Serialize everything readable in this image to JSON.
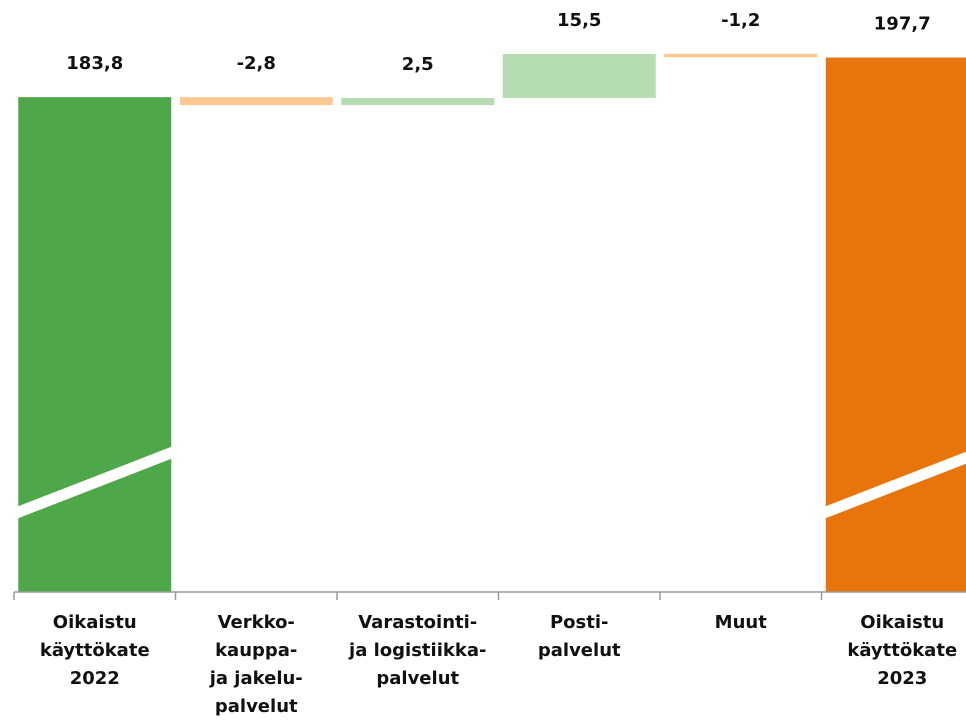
{
  "chart_data": {
    "type": "waterfall",
    "categories": [
      "Oikaistu\nkäyttökate\n2022",
      "Verkko-\nkauppa-\nja jakelu-\npalvelut",
      "Varastointi-\nja logistiikka-\npalvelut",
      "Posti-\npalvelut",
      "Muut",
      "Oikaistu\nkäyttökate\n2023"
    ],
    "values": [
      183.8,
      -2.8,
      2.5,
      15.5,
      -1.2,
      197.7
    ],
    "value_labels": [
      "183,8",
      "-2,8",
      "2,5",
      "15,5",
      "-1,2",
      "197,7"
    ],
    "total_indices": [
      0,
      5
    ],
    "colors": [
      "#4ea84a",
      "#fcc88f",
      "#b5dcb3",
      "#b5dcb3",
      "#fcc88f",
      "#e8740c"
    ],
    "ylim": [
      10,
      200
    ],
    "axis_break": true
  }
}
